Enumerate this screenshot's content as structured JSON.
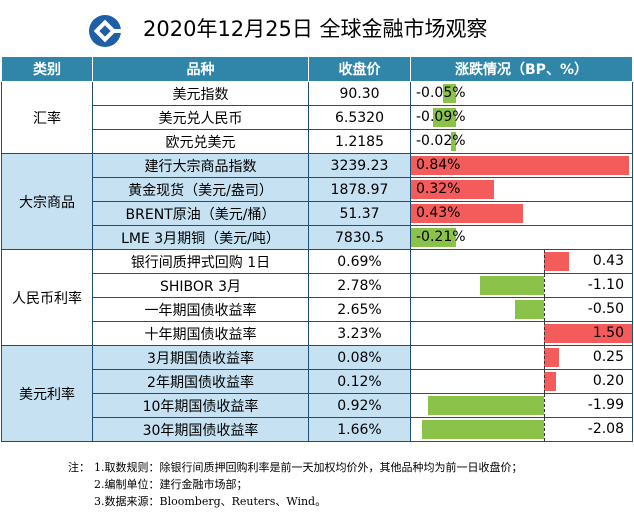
{
  "title": "2020年12月25日 全球金融市场观察",
  "headers": [
    "类别",
    "品种",
    "收盘价",
    "涨跌情况（BP、%）"
  ],
  "colors": {
    "header_bg": "#2f86a9",
    "row_tint": "#c5e1f2",
    "positive": "#f45b5b",
    "negative": "#8bc34a",
    "border": "#1f4e79"
  },
  "groups": [
    {
      "name": "汇率",
      "tinted": false,
      "kind": "pct",
      "rows": [
        {
          "item": "美元指数",
          "close": "90.30",
          "change": "-0.05%",
          "value": -0.05
        },
        {
          "item": "美元兑人民币",
          "close": "6.5320",
          "change": "-0.09%",
          "value": -0.09
        },
        {
          "item": "欧元兑美元",
          "close": "1.2185",
          "change": "-0.02%",
          "value": -0.02
        }
      ]
    },
    {
      "name": "大宗商品",
      "tinted": true,
      "kind": "pct",
      "rows": [
        {
          "item": "建行大宗商品指数",
          "close": "3239.23",
          "change": "0.84%",
          "value": 0.84
        },
        {
          "item": "黄金现货（美元/盎司）",
          "close": "1878.97",
          "change": "0.32%",
          "value": 0.32
        },
        {
          "item": "BRENT原油（美元/桶）",
          "close": "51.37",
          "change": "0.43%",
          "value": 0.43
        },
        {
          "item": "LME 3月期铜（美元/吨）",
          "close": "7830.5",
          "change": "-0.21%",
          "value": -0.21
        }
      ]
    },
    {
      "name": "人民币利率",
      "tinted": false,
      "kind": "bp",
      "rows": [
        {
          "item": "银行间质押式回购 1日",
          "close": "0.69%",
          "change": "0.43",
          "value": 0.43
        },
        {
          "item": "SHIBOR 3月",
          "close": "2.78%",
          "change": "-1.10",
          "value": -1.1
        },
        {
          "item": "一年期国债收益率",
          "close": "2.65%",
          "change": "-0.50",
          "value": -0.5
        },
        {
          "item": "十年期国债收益率",
          "close": "3.23%",
          "change": "1.50",
          "value": 1.5
        }
      ]
    },
    {
      "name": "美元利率",
      "tinted": true,
      "kind": "bp",
      "rows": [
        {
          "item": "3月期国债收益率",
          "close": "0.08%",
          "change": "0.25",
          "value": 0.25
        },
        {
          "item": "2年期国债收益率",
          "close": "0.12%",
          "change": "0.20",
          "value": 0.2
        },
        {
          "item": "10年期国债收益率",
          "close": "0.92%",
          "change": "-1.99",
          "value": -1.99
        },
        {
          "item": "30年期国债收益率",
          "close": "1.66%",
          "change": "-2.08",
          "value": -2.08
        }
      ]
    }
  ],
  "notes": [
    {
      "lead": "注：",
      "text": "1.取数规则：除银行间质押回购利率是前一天加权均价外，其他品种均为前一日收盘价；"
    },
    {
      "lead": "",
      "text": "2.编制单位：建行金融市场部；"
    },
    {
      "lead": "",
      "text": "3.数据来源：Bloomberg、Reuters、Wind。"
    }
  ]
}
